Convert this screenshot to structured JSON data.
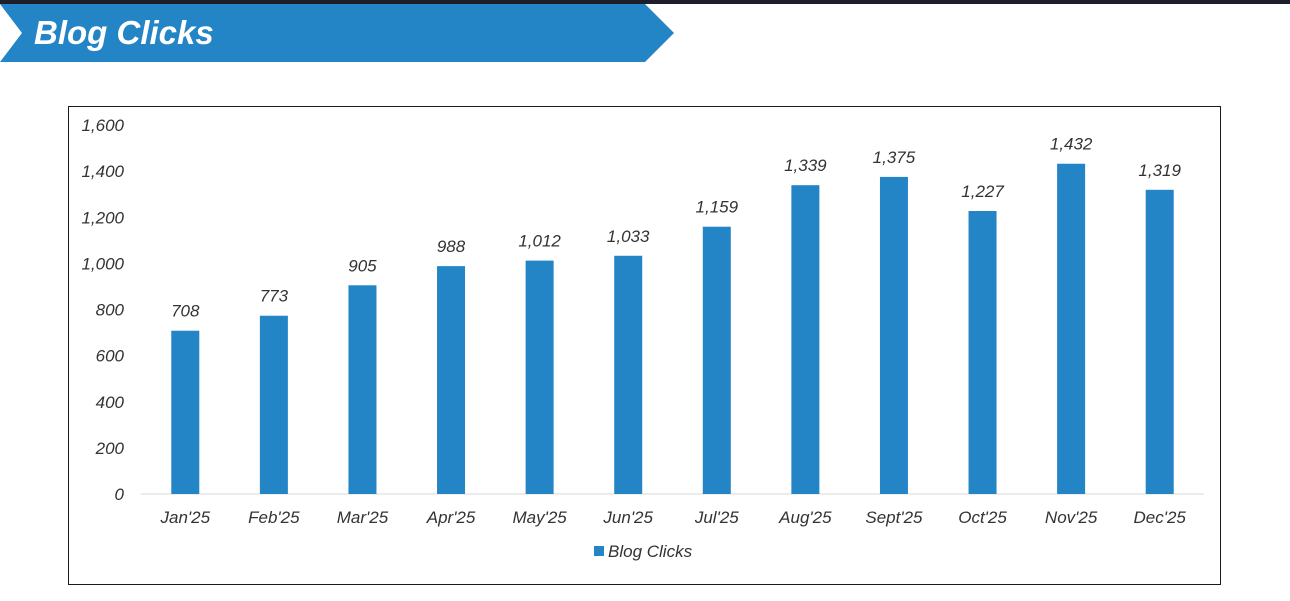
{
  "header": {
    "title": "Blog Clicks",
    "banner_color": "#2384c6"
  },
  "chart_data": {
    "type": "bar",
    "categories": [
      "Jan'25",
      "Feb'25",
      "Mar'25",
      "Apr'25",
      "May'25",
      "Jun'25",
      "Jul'25",
      "Aug'25",
      "Sept'25",
      "Oct'25",
      "Nov'25",
      "Dec'25"
    ],
    "series": [
      {
        "name": "Blog Clicks",
        "values": [
          708,
          773,
          905,
          988,
          1012,
          1033,
          1159,
          1339,
          1375,
          1227,
          1432,
          1319
        ],
        "value_labels": [
          "708",
          "773",
          "905",
          "988",
          "1,012",
          "1,033",
          "1,159",
          "1,339",
          "1,375",
          "1,227",
          "1,432",
          "1,319"
        ],
        "color": "#2384c6"
      }
    ],
    "y_ticks": [
      "0",
      "200",
      "400",
      "600",
      "800",
      "1,000",
      "1,200",
      "1,400",
      "1,600"
    ],
    "ylim": [
      0,
      1600
    ],
    "gridlines": false,
    "legend_position": "bottom",
    "title": "",
    "xlabel": "",
    "ylabel": ""
  }
}
